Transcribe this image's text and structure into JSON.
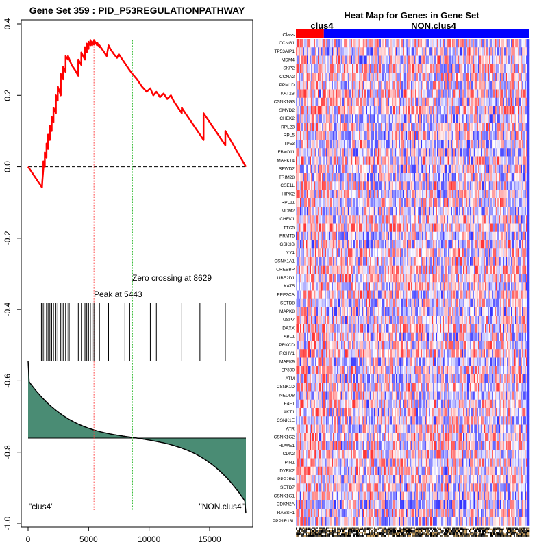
{
  "chart_data": [
    {
      "type": "line",
      "title": "Gene Set  359 : PID_P53REGULATIONPATHWAY",
      "xlabel": "",
      "ylabel": "",
      "xlim": [
        0,
        18000
      ],
      "ylim": [
        -1.0,
        0.4
      ],
      "x_ticks": [
        0,
        5000,
        10000,
        15000
      ],
      "x_tick_labels": [
        "0",
        "5000",
        "10000",
        "15000"
      ],
      "y_ticks": [
        0.4,
        0.2,
        0.0,
        -0.2,
        -0.4,
        -0.6,
        -0.8,
        -1.0
      ],
      "y_tick_labels": [
        "0.4",
        "0.2",
        "0.0",
        "-0.2",
        "-0.4",
        "-0.6",
        "-0.8",
        "-1.0"
      ],
      "enrichment_line_color": "#ff0000",
      "peak_line_color": "#ff4444",
      "zero_cross_line_color": "#33bb33",
      "fill_color": "#4a8c74",
      "series": [
        {
          "name": "running enrichment score",
          "x": [
            0,
            1150,
            1180,
            1260,
            1260,
            1380,
            1380,
            1520,
            1520,
            1650,
            1650,
            1800,
            1800,
            1950,
            1950,
            2100,
            2100,
            2300,
            2300,
            2450,
            2450,
            2700,
            2700,
            2900,
            2900,
            3100,
            3100,
            3300,
            3300,
            3600,
            3900,
            4150,
            4150,
            4400,
            4400,
            4700,
            4700,
            4850,
            4850,
            5000,
            5000,
            5150,
            5150,
            5300,
            5300,
            5443,
            5443,
            5700,
            5700,
            5900,
            5900,
            6200,
            6500,
            6650,
            6800,
            7100,
            7350,
            7500,
            7800,
            8100,
            8400,
            8629,
            9000,
            9400,
            9800,
            10100,
            10350,
            10600,
            10900,
            11200,
            11500,
            11800,
            12100,
            12400,
            12700,
            12700,
            13000,
            13300,
            13600,
            13900,
            14200,
            14500,
            14500,
            14800,
            15100,
            15400,
            15700,
            16000,
            16300,
            16300,
            18000
          ],
          "y": [
            0.0,
            -0.058,
            -0.04,
            -0.005,
            0.015,
            0.0,
            0.04,
            0.025,
            0.065,
            0.05,
            0.09,
            0.075,
            0.115,
            0.1,
            0.14,
            0.125,
            0.165,
            0.15,
            0.2,
            0.185,
            0.225,
            0.2,
            0.26,
            0.245,
            0.28,
            0.265,
            0.31,
            0.3,
            0.31,
            0.285,
            0.27,
            0.255,
            0.3,
            0.285,
            0.32,
            0.3,
            0.335,
            0.32,
            0.345,
            0.33,
            0.35,
            0.34,
            0.355,
            0.34,
            0.35,
            0.342,
            0.355,
            0.34,
            0.348,
            0.335,
            0.34,
            0.325,
            0.31,
            0.34,
            0.33,
            0.315,
            0.305,
            0.315,
            0.3,
            0.285,
            0.27,
            0.26,
            0.245,
            0.225,
            0.21,
            0.22,
            0.2,
            0.21,
            0.195,
            0.205,
            0.19,
            0.2,
            0.18,
            0.165,
            0.15,
            0.165,
            0.15,
            0.135,
            0.12,
            0.105,
            0.09,
            0.075,
            0.15,
            0.135,
            0.12,
            0.105,
            0.09,
            0.075,
            0.06,
            0.1,
            0.0
          ]
        }
      ],
      "hit_positions": [
        1100,
        1250,
        1380,
        1520,
        1650,
        1800,
        1950,
        2100,
        2300,
        2450,
        2700,
        2900,
        3100,
        3300,
        3400,
        4150,
        4400,
        4700,
        4850,
        5000,
        5150,
        5300,
        5443,
        5900,
        6650,
        7500,
        8000,
        8400,
        10100,
        10600,
        12700,
        14200,
        16300
      ],
      "peak_x": 5443,
      "zero_crossing_x": 8629,
      "annotations": [
        {
          "name": "peak-label",
          "text": "Peak at 5443"
        },
        {
          "name": "zero-crossing-label",
          "text": "Zero crossing at 8629"
        },
        {
          "name": "left-class-label",
          "text": "\"clus4\""
        },
        {
          "name": "right-class-label",
          "text": "\"NON.clus4\""
        }
      ]
    },
    {
      "type": "heatmap",
      "title": "Heat Map for Genes in Gene Set",
      "class_label_left": "clus4",
      "class_label_right": "NON.clus4",
      "class_row_label": "Class",
      "class_split_fraction": 0.12,
      "class_colors": {
        "clus4": "#ff0000",
        "NON.clus4": "#0000ff"
      },
      "genes": [
        "CCNG1",
        "TP53AIP1",
        "MDM4",
        "SKP2",
        "CCNA2",
        "PPM1D",
        "KAT2B",
        "CSNK1G3",
        "SMYD2",
        "CHEK2",
        "RPL23",
        "RPL5",
        "TP53",
        "FBXO11",
        "MAPK14",
        "RFWD2",
        "TRIM28",
        "CSE1L",
        "HIPK2",
        "RPL11",
        "MDM2",
        "CHEK1",
        "TTC5",
        "PRMT5",
        "GSK3B",
        "YY1",
        "CSNK1A1",
        "CREBBP",
        "UBE2D1",
        "KAT5",
        "PPP2CA",
        "SETD8",
        "MAPK8",
        "USP7",
        "DAXX",
        "ABL1",
        "PRKCD",
        "RCHY1",
        "MAPK9",
        "EP300",
        "ATM",
        "CSNK1D",
        "NEDD8",
        "E4F1",
        "AKT1",
        "CSNK1E",
        "ATR",
        "CSNK1G2",
        "HUWE1",
        "CDK2",
        "PIN1",
        "DYRK2",
        "PPP2R4",
        "SETD7",
        "CSNK1G1",
        "CDKN2A",
        "RASSF1",
        "PPP1R13L"
      ]
    }
  ]
}
